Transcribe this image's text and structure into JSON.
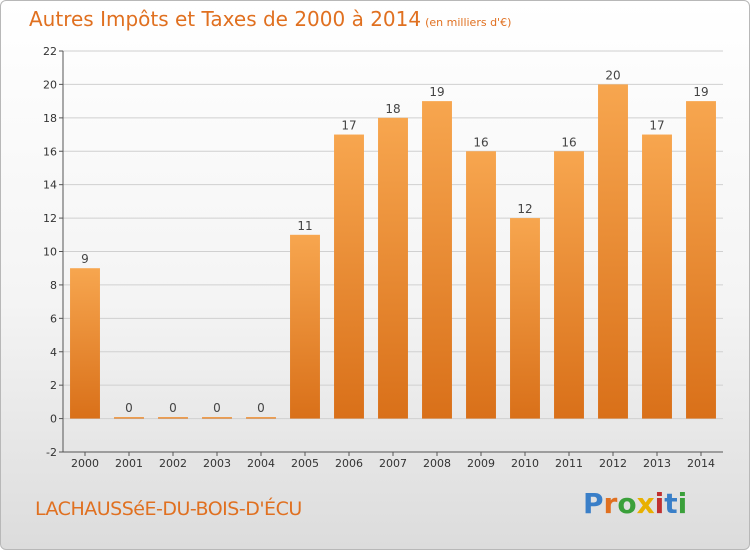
{
  "header": {
    "title": "Autres Impôts et Taxes de 2000 à 2014",
    "subtitle": "(en milliers d'€)"
  },
  "footer": {
    "town": "LACHAUSSéE-DU-BOIS-D'ÉCU",
    "logo_text": "Proxiti",
    "logo_letters": [
      {
        "ch": "P",
        "color": "#3a7fc8"
      },
      {
        "ch": "r",
        "color": "#e07020"
      },
      {
        "ch": "o",
        "color": "#3aa03a"
      },
      {
        "ch": "x",
        "color": "#e8b000"
      },
      {
        "ch": "i",
        "color": "#c03030"
      },
      {
        "ch": "t",
        "color": "#3a7fc8"
      },
      {
        "ch": "i",
        "color": "#3aa03a"
      }
    ]
  },
  "chart_data": {
    "type": "bar",
    "title": "Autres Impôts et Taxes de 2000 à 2014",
    "subtitle": "(en milliers d'€)",
    "categories": [
      "2000",
      "2001",
      "2002",
      "2003",
      "2004",
      "2005",
      "2006",
      "2007",
      "2008",
      "2009",
      "2010",
      "2011",
      "2012",
      "2013",
      "2014"
    ],
    "values": [
      9,
      0,
      0,
      0,
      0,
      11,
      17,
      18,
      19,
      16,
      12,
      16,
      20,
      17,
      19
    ],
    "ylim": [
      -2,
      22
    ],
    "yticks": [
      -2,
      0,
      2,
      4,
      6,
      8,
      10,
      12,
      14,
      16,
      18,
      20,
      22
    ],
    "grid": true,
    "colors": {
      "bar_top": "#f7a64f",
      "bar_bottom": "#d97019",
      "axis": "#555555",
      "grid": "#d0d0d0"
    }
  }
}
